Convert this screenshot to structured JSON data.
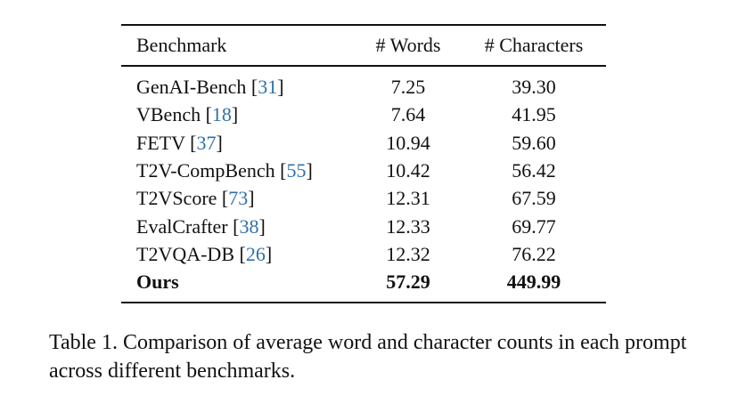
{
  "table": {
    "header": [
      "Benchmark",
      "# Words",
      "# Characters"
    ],
    "rows": [
      {
        "benchmark": [
          "GenAI-Bench [",
          "31",
          "]"
        ],
        "words": "7.25",
        "characters": "39.30"
      },
      {
        "benchmark": [
          "VBench [",
          "18",
          "]"
        ],
        "words": "7.64",
        "characters": "41.95"
      },
      {
        "benchmark": [
          "FETV [",
          "37",
          "]"
        ],
        "words": "10.94",
        "characters": "59.60"
      },
      {
        "benchmark": [
          "T2V-CompBench [",
          "55",
          "]"
        ],
        "words": "10.42",
        "characters": "56.42"
      },
      {
        "benchmark": [
          "T2VScore [",
          "73",
          "]"
        ],
        "words": "12.31",
        "characters": "67.59"
      },
      {
        "benchmark": [
          "EvalCrafter [",
          "38",
          "]"
        ],
        "words": "12.33",
        "characters": "69.77"
      },
      {
        "benchmark": [
          "T2VQA-DB [",
          "26",
          "]"
        ],
        "words": "12.32",
        "characters": "76.22"
      }
    ],
    "total": {
      "benchmark": "Ours",
      "words": "57.29",
      "characters": "449.99"
    }
  },
  "caption": "Table 1. Comparison of average word and character counts in each prompt across different benchmarks."
}
